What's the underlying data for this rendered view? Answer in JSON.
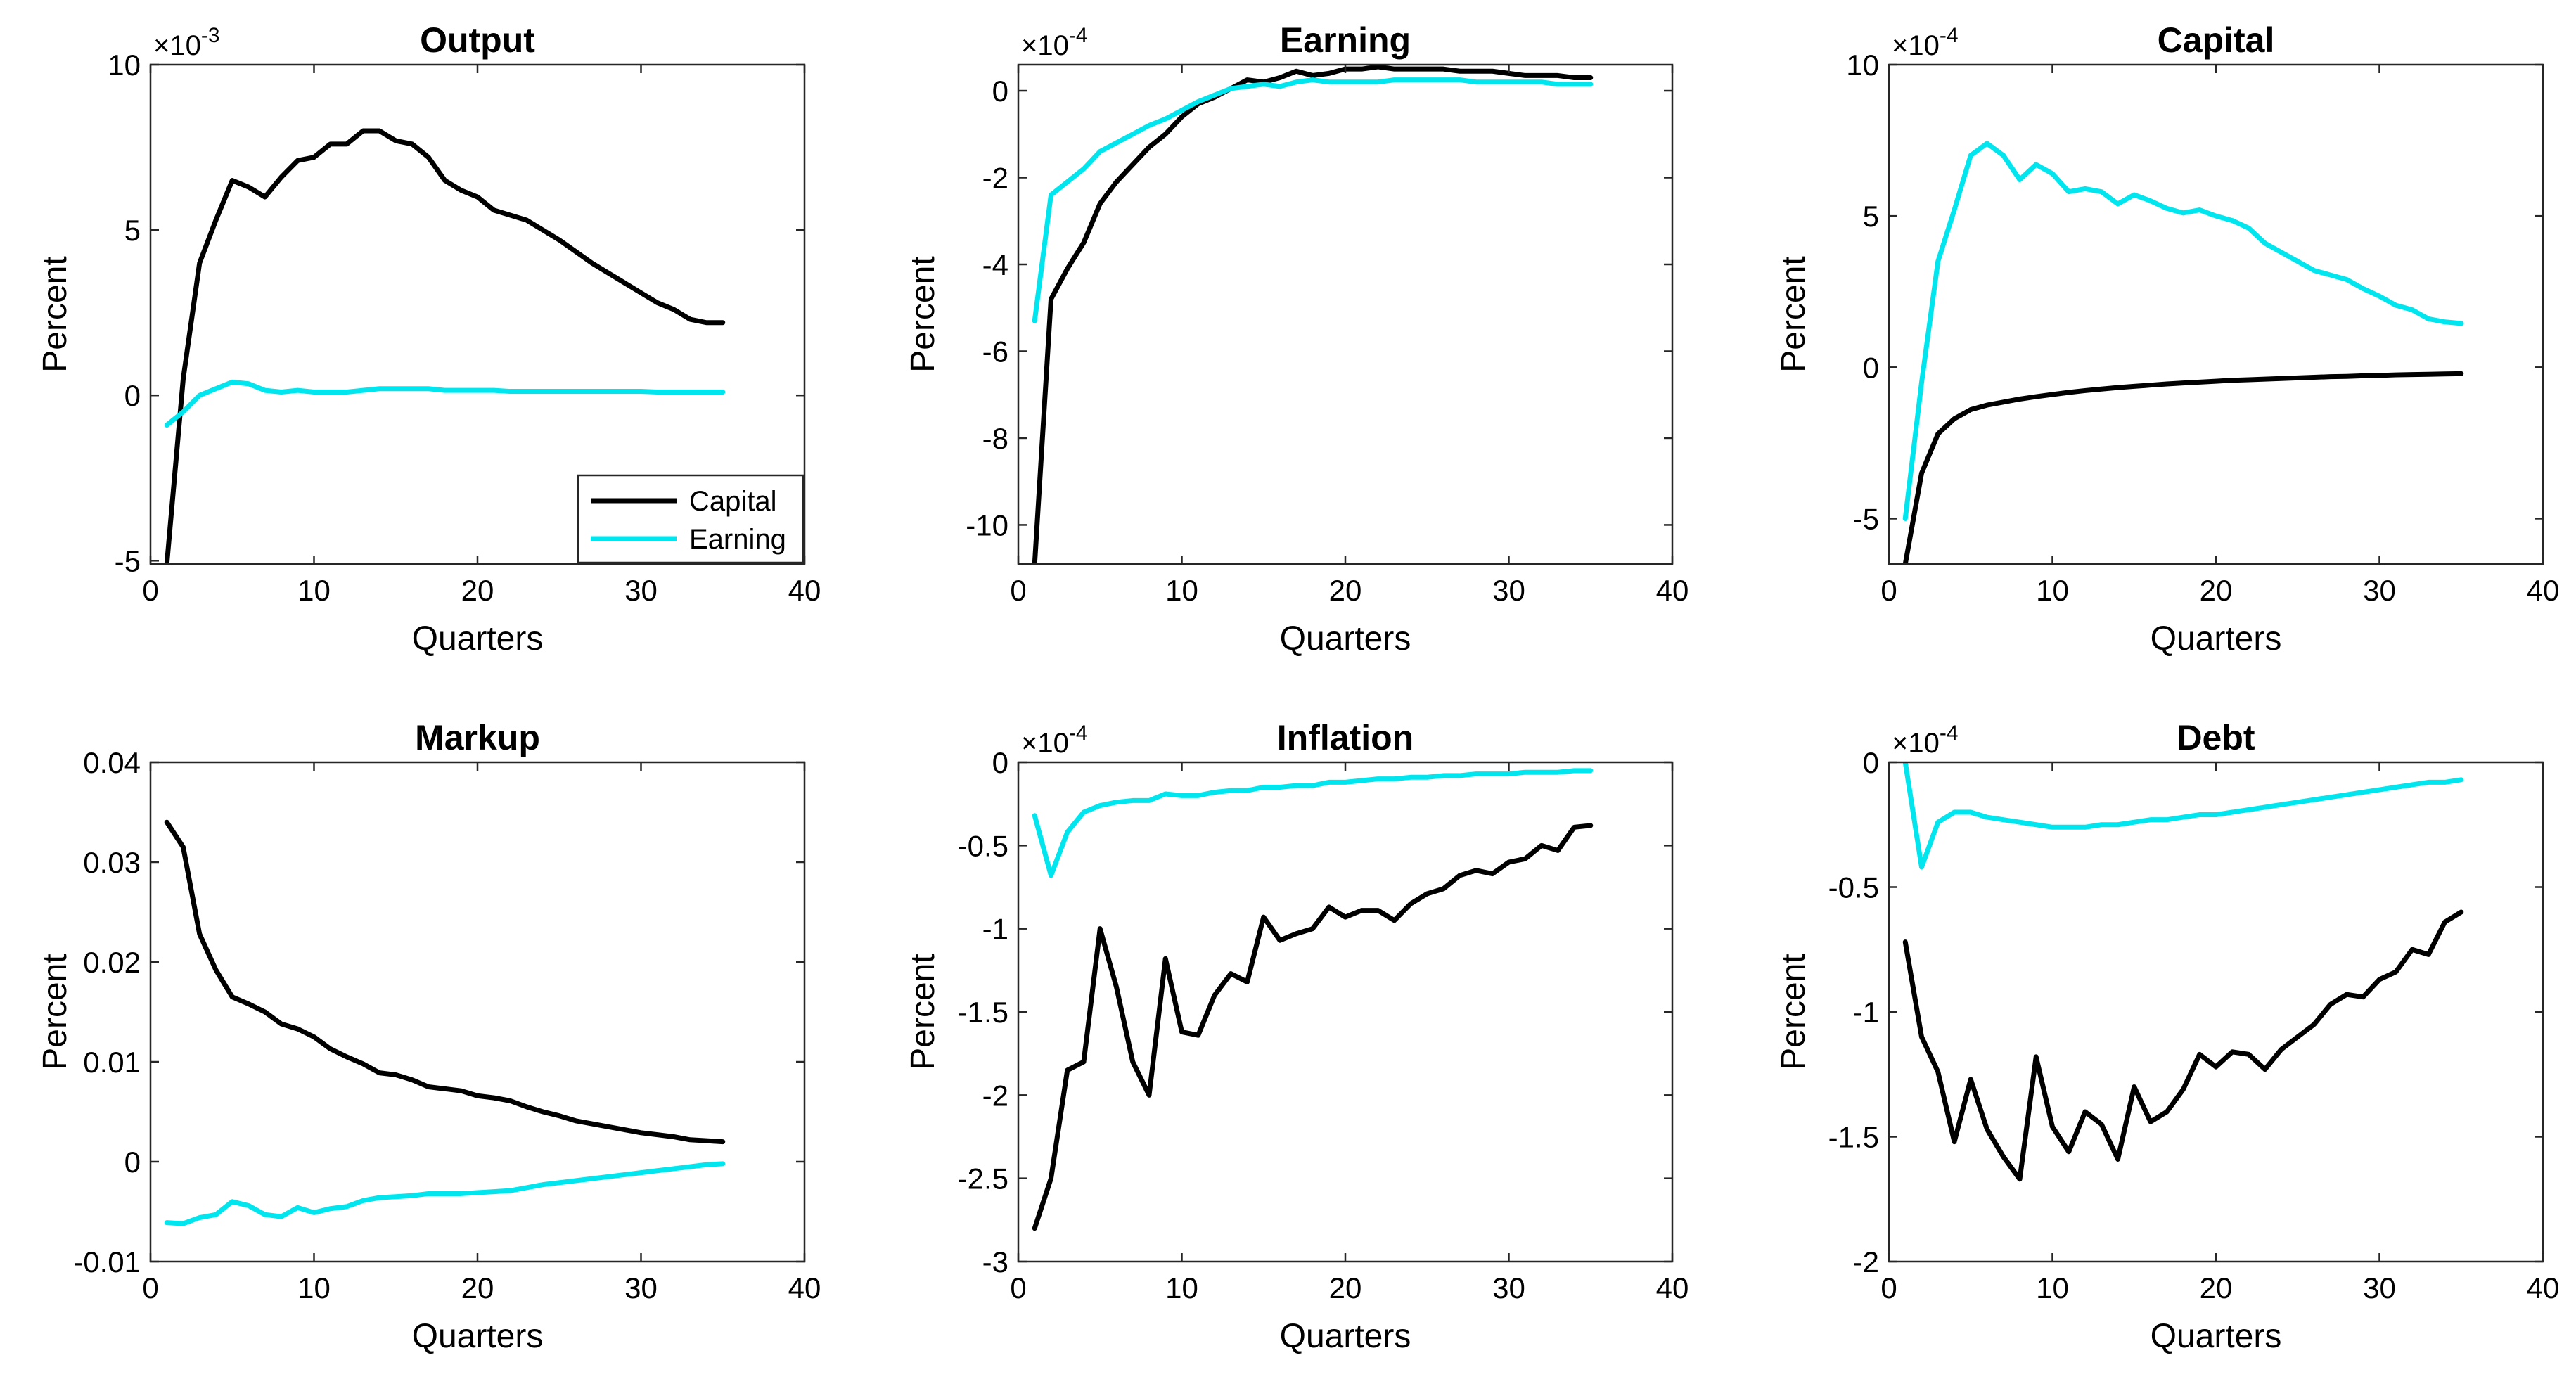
{
  "colors": {
    "capital": "#000000",
    "earning": "#00e5ee"
  },
  "legend": {
    "location": "bottom-right",
    "entries": [
      "Capital",
      "Earning"
    ]
  },
  "chart_data": [
    {
      "type": "line",
      "title": "Output",
      "xlabel": "Quarters",
      "ylabel": "Percent",
      "xlim": [
        0,
        40
      ],
      "ylim": [
        -5.1,
        10
      ],
      "exponent_label": "×10",
      "exponent_power": "-3",
      "xticks": [
        0,
        10,
        20,
        30,
        40
      ],
      "xtick_labels": [
        "0",
        "10",
        "20",
        "30",
        "40"
      ],
      "yticks": [
        -5,
        0,
        5,
        10
      ],
      "ytick_labels": [
        "-5",
        "0",
        "5",
        "10"
      ],
      "show_legend": true,
      "x": [
        1,
        2,
        3,
        4,
        5,
        6,
        7,
        8,
        9,
        10,
        11,
        12,
        13,
        14,
        15,
        16,
        17,
        18,
        19,
        20,
        21,
        22,
        23,
        24,
        25,
        26,
        27,
        28,
        29,
        30,
        31,
        32,
        33,
        34,
        35
      ],
      "series": [
        {
          "name": "Capital",
          "color_key": "capital",
          "values": [
            -5.1,
            0.5,
            4,
            5.3,
            6.5,
            6.3,
            6,
            6.6,
            7.1,
            7.2,
            7.6,
            7.6,
            8,
            8,
            7.7,
            7.6,
            7.2,
            6.5,
            6.2,
            6,
            5.6,
            5.45,
            5.3,
            5,
            4.7,
            4.35,
            4,
            3.7,
            3.4,
            3.1,
            2.8,
            2.6,
            2.3,
            2.2,
            2.2
          ]
        },
        {
          "name": "Earning",
          "color_key": "earning",
          "values": [
            -0.9,
            -0.5,
            0,
            0.2,
            0.4,
            0.35,
            0.15,
            0.1,
            0.15,
            0.1,
            0.1,
            0.1,
            0.15,
            0.2,
            0.2,
            0.2,
            0.2,
            0.15,
            0.15,
            0.15,
            0.15,
            0.12,
            0.12,
            0.12,
            0.12,
            0.12,
            0.12,
            0.12,
            0.12,
            0.12,
            0.1,
            0.1,
            0.1,
            0.1,
            0.1
          ]
        }
      ]
    },
    {
      "type": "line",
      "title": "Earning",
      "xlabel": "Quarters",
      "ylabel": "Percent",
      "xlim": [
        0,
        40
      ],
      "ylim": [
        -10.9,
        0.6
      ],
      "exponent_label": "×10",
      "exponent_power": "-4",
      "xticks": [
        0,
        10,
        20,
        30,
        40
      ],
      "xtick_labels": [
        "0",
        "10",
        "20",
        "30",
        "40"
      ],
      "yticks": [
        -10,
        -8,
        -6,
        -4,
        -2,
        0
      ],
      "ytick_labels": [
        "-10",
        "-8",
        "-6",
        "-4",
        "-2",
        "0"
      ],
      "show_legend": false,
      "x": [
        1,
        2,
        3,
        4,
        5,
        6,
        7,
        8,
        9,
        10,
        11,
        12,
        13,
        14,
        15,
        16,
        17,
        18,
        19,
        20,
        21,
        22,
        23,
        24,
        25,
        26,
        27,
        28,
        29,
        30,
        31,
        32,
        33,
        34,
        35
      ],
      "series": [
        {
          "name": "Capital",
          "color_key": "capital",
          "values": [
            -10.9,
            -4.8,
            -4.1,
            -3.5,
            -2.6,
            -2.1,
            -1.7,
            -1.3,
            -1,
            -0.6,
            -0.3,
            -0.15,
            0.05,
            0.25,
            0.2,
            0.3,
            0.45,
            0.35,
            0.4,
            0.5,
            0.5,
            0.55,
            0.5,
            0.5,
            0.5,
            0.5,
            0.45,
            0.45,
            0.45,
            0.4,
            0.35,
            0.35,
            0.35,
            0.3,
            0.3
          ]
        },
        {
          "name": "Earning",
          "color_key": "earning",
          "values": [
            -5.3,
            -2.4,
            -2.1,
            -1.8,
            -1.4,
            -1.2,
            -1,
            -0.8,
            -0.65,
            -0.45,
            -0.25,
            -0.1,
            0.05,
            0.1,
            0.15,
            0.1,
            0.2,
            0.25,
            0.2,
            0.2,
            0.2,
            0.2,
            0.25,
            0.25,
            0.25,
            0.25,
            0.25,
            0.2,
            0.2,
            0.2,
            0.2,
            0.2,
            0.15,
            0.15,
            0.15
          ]
        }
      ]
    },
    {
      "type": "line",
      "title": "Capital",
      "xlabel": "Quarters",
      "ylabel": "Percent",
      "xlim": [
        0,
        40
      ],
      "ylim": [
        -6.5,
        10
      ],
      "exponent_label": "×10",
      "exponent_power": "-4",
      "xticks": [
        0,
        10,
        20,
        30,
        40
      ],
      "xtick_labels": [
        "0",
        "10",
        "20",
        "30",
        "40"
      ],
      "yticks": [
        -5,
        0,
        5,
        10
      ],
      "ytick_labels": [
        "-5",
        "0",
        "5",
        "10"
      ],
      "show_legend": false,
      "x": [
        1,
        2,
        3,
        4,
        5,
        6,
        7,
        8,
        9,
        10,
        11,
        12,
        13,
        14,
        15,
        16,
        17,
        18,
        19,
        20,
        21,
        22,
        23,
        24,
        25,
        26,
        27,
        28,
        29,
        30,
        31,
        32,
        33,
        34,
        35
      ],
      "series": [
        {
          "name": "Capital",
          "color_key": "capital",
          "values": [
            -6.5,
            -3.5,
            -2.2,
            -1.7,
            -1.4,
            -1.25,
            -1.15,
            -1.05,
            -0.97,
            -0.9,
            -0.83,
            -0.77,
            -0.72,
            -0.67,
            -0.63,
            -0.59,
            -0.55,
            -0.52,
            -0.49,
            -0.46,
            -0.43,
            -0.41,
            -0.39,
            -0.37,
            -0.35,
            -0.33,
            -0.31,
            -0.3,
            -0.28,
            -0.27,
            -0.25,
            -0.24,
            -0.23,
            -0.22,
            -0.21
          ]
        },
        {
          "name": "Earning",
          "color_key": "earning",
          "values": [
            -5,
            -0.5,
            3.5,
            5.2,
            7,
            7.4,
            7,
            6.2,
            6.7,
            6.4,
            5.8,
            5.9,
            5.8,
            5.4,
            5.7,
            5.5,
            5.25,
            5.1,
            5.2,
            5,
            4.85,
            4.6,
            4.1,
            3.8,
            3.5,
            3.2,
            3.05,
            2.9,
            2.6,
            2.35,
            2.05,
            1.9,
            1.6,
            1.5,
            1.45
          ]
        }
      ]
    },
    {
      "type": "line",
      "title": "Markup",
      "xlabel": "Quarters",
      "ylabel": "Percent",
      "xlim": [
        0,
        40
      ],
      "ylim": [
        -0.01,
        0.04
      ],
      "exponent_label": "",
      "exponent_power": "",
      "xticks": [
        0,
        10,
        20,
        30,
        40
      ],
      "xtick_labels": [
        "0",
        "10",
        "20",
        "30",
        "40"
      ],
      "yticks": [
        -0.01,
        0,
        0.01,
        0.02,
        0.03,
        0.04
      ],
      "ytick_labels": [
        "-0.01",
        "0",
        "0.01",
        "0.02",
        "0.03",
        "0.04"
      ],
      "show_legend": false,
      "x": [
        1,
        2,
        3,
        4,
        5,
        6,
        7,
        8,
        9,
        10,
        11,
        12,
        13,
        14,
        15,
        16,
        17,
        18,
        19,
        20,
        21,
        22,
        23,
        24,
        25,
        26,
        27,
        28,
        29,
        30,
        31,
        32,
        33,
        34,
        35
      ],
      "series": [
        {
          "name": "Capital",
          "color_key": "capital",
          "values": [
            0.034,
            0.0315,
            0.0228,
            0.0192,
            0.0165,
            0.0158,
            0.015,
            0.0138,
            0.0133,
            0.0125,
            0.0113,
            0.0105,
            0.0098,
            0.0089,
            0.0087,
            0.0082,
            0.0075,
            0.0073,
            0.0071,
            0.0066,
            0.0064,
            0.0061,
            0.0055,
            0.005,
            0.0046,
            0.0041,
            0.0038,
            0.0035,
            0.0032,
            0.0029,
            0.0027,
            0.0025,
            0.0022,
            0.0021,
            0.002
          ]
        },
        {
          "name": "Earning",
          "color_key": "earning",
          "values": [
            -0.0061,
            -0.0062,
            -0.0056,
            -0.0053,
            -0.004,
            -0.0044,
            -0.0053,
            -0.0055,
            -0.0046,
            -0.0051,
            -0.0047,
            -0.0045,
            -0.0039,
            -0.0036,
            -0.0035,
            -0.0034,
            -0.0032,
            -0.0032,
            -0.0032,
            -0.0031,
            -0.003,
            -0.0029,
            -0.0026,
            -0.0023,
            -0.0021,
            -0.0019,
            -0.0017,
            -0.0015,
            -0.0013,
            -0.0011,
            -0.0009,
            -0.0007,
            -0.0005,
            -0.0003,
            -0.0002
          ]
        }
      ]
    },
    {
      "type": "line",
      "title": "Inflation",
      "xlabel": "Quarters",
      "ylabel": "Percent",
      "xlim": [
        0,
        40
      ],
      "ylim": [
        -3,
        0
      ],
      "exponent_label": "×10",
      "exponent_power": "-4",
      "xticks": [
        0,
        10,
        20,
        30,
        40
      ],
      "xtick_labels": [
        "0",
        "10",
        "20",
        "30",
        "40"
      ],
      "yticks": [
        -3,
        -2.5,
        -2,
        -1.5,
        -1,
        -0.5,
        0
      ],
      "ytick_labels": [
        "-3",
        "-2.5",
        "-2",
        "-1.5",
        "-1",
        "-0.5",
        "0"
      ],
      "show_legend": false,
      "x": [
        1,
        2,
        3,
        4,
        5,
        6,
        7,
        8,
        9,
        10,
        11,
        12,
        13,
        14,
        15,
        16,
        17,
        18,
        19,
        20,
        21,
        22,
        23,
        24,
        25,
        26,
        27,
        28,
        29,
        30,
        31,
        32,
        33,
        34,
        35
      ],
      "series": [
        {
          "name": "Capital",
          "color_key": "capital",
          "values": [
            -2.8,
            -2.5,
            -1.85,
            -1.8,
            -1.0,
            -1.35,
            -1.8,
            -2.0,
            -1.18,
            -1.62,
            -1.64,
            -1.4,
            -1.27,
            -1.32,
            -0.93,
            -1.07,
            -1.03,
            -1.0,
            -0.87,
            -0.93,
            -0.89,
            -0.89,
            -0.95,
            -0.85,
            -0.79,
            -0.76,
            -0.68,
            -0.65,
            -0.67,
            -0.6,
            -0.58,
            -0.5,
            -0.53,
            -0.39,
            -0.38
          ]
        },
        {
          "name": "Earning",
          "color_key": "earning",
          "values": [
            -0.32,
            -0.68,
            -0.42,
            -0.3,
            -0.26,
            -0.24,
            -0.23,
            -0.23,
            -0.19,
            -0.2,
            -0.2,
            -0.18,
            -0.17,
            -0.17,
            -0.15,
            -0.15,
            -0.14,
            -0.14,
            -0.12,
            -0.12,
            -0.11,
            -0.1,
            -0.1,
            -0.09,
            -0.09,
            -0.08,
            -0.08,
            -0.07,
            -0.07,
            -0.07,
            -0.06,
            -0.06,
            -0.06,
            -0.05,
            -0.05
          ]
        }
      ]
    },
    {
      "type": "line",
      "title": "Debt",
      "xlabel": "Quarters",
      "ylabel": "Percent",
      "xlim": [
        0,
        40
      ],
      "ylim": [
        -2,
        0
      ],
      "exponent_label": "×10",
      "exponent_power": "-4",
      "xticks": [
        0,
        10,
        20,
        30,
        40
      ],
      "xtick_labels": [
        "0",
        "10",
        "20",
        "30",
        "40"
      ],
      "yticks": [
        -2,
        -1.5,
        -1,
        -0.5,
        0
      ],
      "ytick_labels": [
        "-2",
        "-1.5",
        "-1",
        "-0.5",
        "0"
      ],
      "show_legend": false,
      "x": [
        1,
        2,
        3,
        4,
        5,
        6,
        7,
        8,
        9,
        10,
        11,
        12,
        13,
        14,
        15,
        16,
        17,
        18,
        19,
        20,
        21,
        22,
        23,
        24,
        25,
        26,
        27,
        28,
        29,
        30,
        31,
        32,
        33,
        34,
        35
      ],
      "series": [
        {
          "name": "Capital",
          "color_key": "capital",
          "values": [
            -0.72,
            -1.1,
            -1.24,
            -1.52,
            -1.27,
            -1.47,
            -1.58,
            -1.67,
            -1.18,
            -1.46,
            -1.56,
            -1.4,
            -1.45,
            -1.59,
            -1.3,
            -1.44,
            -1.4,
            -1.31,
            -1.17,
            -1.22,
            -1.16,
            -1.17,
            -1.23,
            -1.15,
            -1.1,
            -1.05,
            -0.97,
            -0.93,
            -0.94,
            -0.87,
            -0.84,
            -0.75,
            -0.77,
            -0.64,
            -0.6
          ]
        },
        {
          "name": "Earning",
          "color_key": "earning",
          "values": [
            0,
            -0.42,
            -0.24,
            -0.2,
            -0.2,
            -0.22,
            -0.23,
            -0.24,
            -0.25,
            -0.26,
            -0.26,
            -0.26,
            -0.25,
            -0.25,
            -0.24,
            -0.23,
            -0.23,
            -0.22,
            -0.21,
            -0.21,
            -0.2,
            -0.19,
            -0.18,
            -0.17,
            -0.16,
            -0.15,
            -0.14,
            -0.13,
            -0.12,
            -0.11,
            -0.1,
            -0.09,
            -0.08,
            -0.08,
            -0.07
          ]
        }
      ]
    }
  ]
}
